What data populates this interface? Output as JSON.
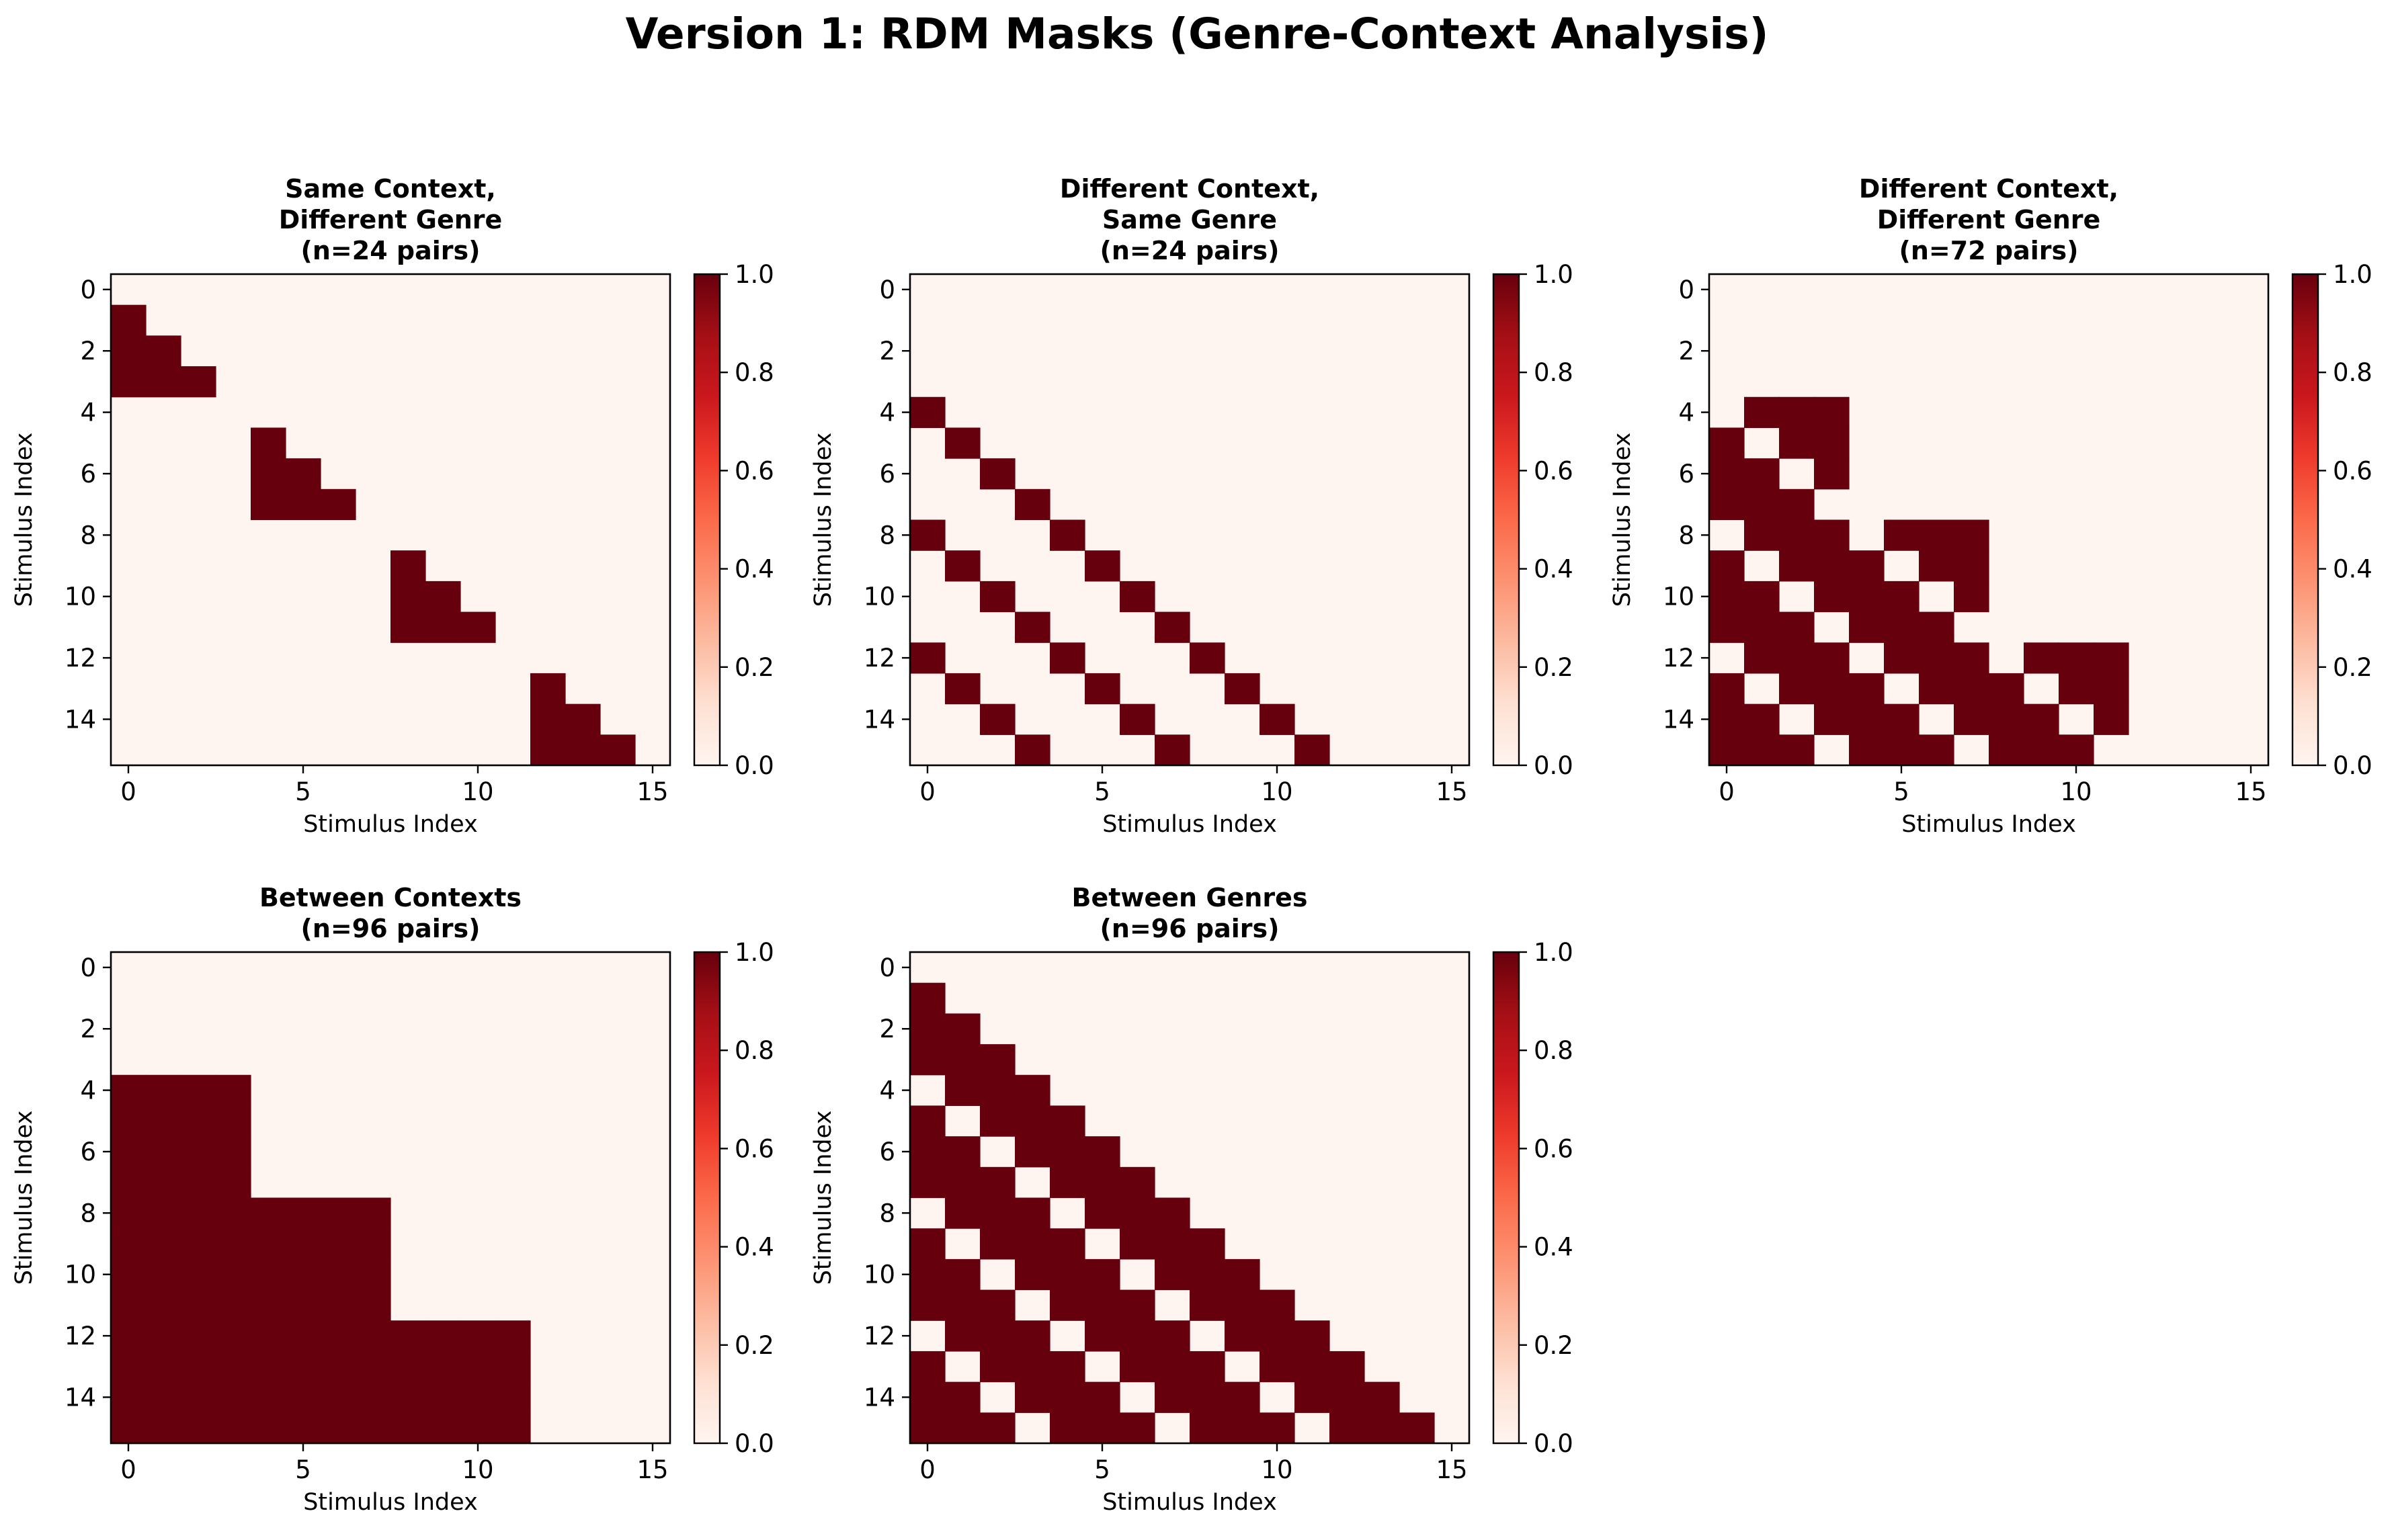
{
  "figure": {
    "title": "Version 1: RDM Masks (Genre-Context Analysis)"
  },
  "colorbar": {
    "ticks": [
      "0.0",
      "0.2",
      "0.4",
      "0.6",
      "0.8",
      "1.0"
    ],
    "colormap": "Reds",
    "low_color": "#fff5f0",
    "high_color": "#67000d"
  },
  "chart_data": [
    {
      "type": "heatmap",
      "title": [
        "Same Context,",
        "Different Genre",
        "(n=24 pairs)"
      ],
      "xlabel": "Stimulus Index",
      "ylabel": "Stimulus Index",
      "size": 16,
      "x_ticks": [
        0,
        5,
        10,
        15
      ],
      "y_ticks": [
        0,
        2,
        4,
        6,
        8,
        10,
        12,
        14
      ],
      "vmin": 0,
      "vmax": 1,
      "rule": "same_context_diff_genre"
    },
    {
      "type": "heatmap",
      "title": [
        "Different Context,",
        "Same Genre",
        "(n=24 pairs)"
      ],
      "xlabel": "Stimulus Index",
      "ylabel": "Stimulus Index",
      "size": 16,
      "x_ticks": [
        0,
        5,
        10,
        15
      ],
      "y_ticks": [
        0,
        2,
        4,
        6,
        8,
        10,
        12,
        14
      ],
      "vmin": 0,
      "vmax": 1,
      "rule": "diff_context_same_genre"
    },
    {
      "type": "heatmap",
      "title": [
        "Different Context,",
        "Different Genre",
        "(n=72 pairs)"
      ],
      "xlabel": "Stimulus Index",
      "ylabel": "Stimulus Index",
      "size": 16,
      "x_ticks": [
        0,
        5,
        10,
        15
      ],
      "y_ticks": [
        0,
        2,
        4,
        6,
        8,
        10,
        12,
        14
      ],
      "vmin": 0,
      "vmax": 1,
      "rule": "diff_context_diff_genre"
    },
    {
      "type": "heatmap",
      "title": [
        "Between Contexts",
        "(n=96 pairs)"
      ],
      "xlabel": "Stimulus Index",
      "ylabel": "Stimulus Index",
      "size": 16,
      "x_ticks": [
        0,
        5,
        10,
        15
      ],
      "y_ticks": [
        0,
        2,
        4,
        6,
        8,
        10,
        12,
        14
      ],
      "vmin": 0,
      "vmax": 1,
      "rule": "between_contexts"
    },
    {
      "type": "heatmap",
      "title": [
        "Between Genres",
        "(n=96 pairs)"
      ],
      "xlabel": "Stimulus Index",
      "ylabel": "Stimulus Index",
      "size": 16,
      "x_ticks": [
        0,
        5,
        10,
        15
      ],
      "y_ticks": [
        0,
        2,
        4,
        6,
        8,
        10,
        12,
        14
      ],
      "vmin": 0,
      "vmax": 1,
      "rule": "between_genres"
    }
  ]
}
